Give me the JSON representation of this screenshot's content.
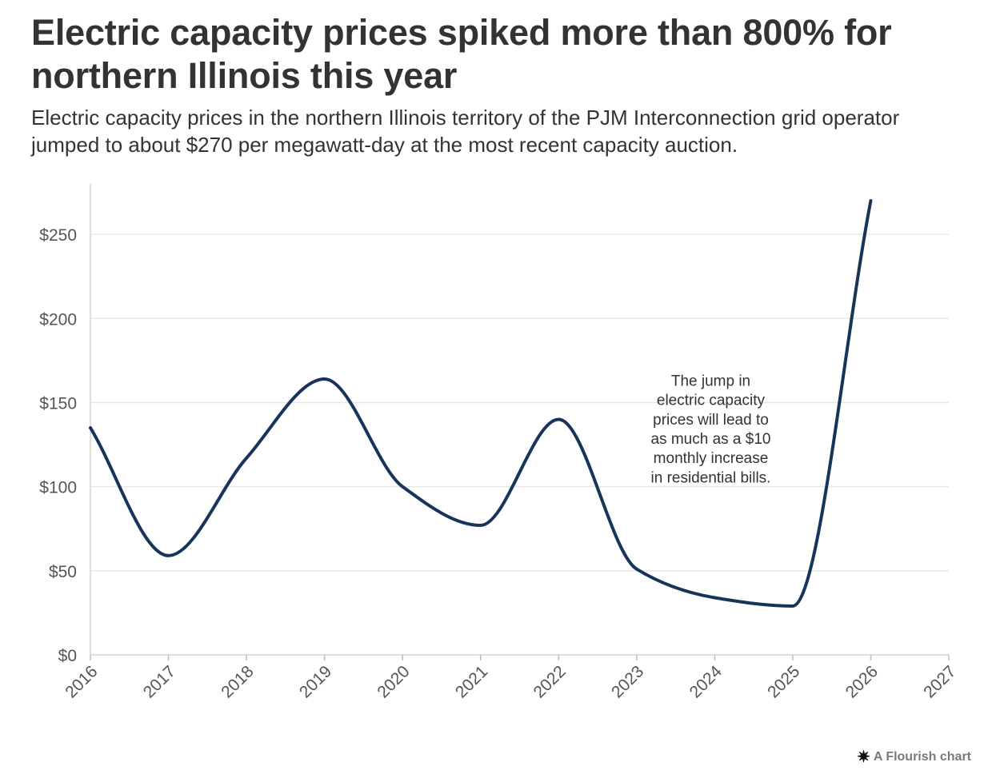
{
  "header": {
    "title": "Electric capacity prices spiked more than 800% for northern Illinois this year",
    "subtitle": "Electric capacity prices in the northern Illinois territory of the PJM Interconnection grid operator jumped to about $270 per megawatt-day at the most recent capacity auction."
  },
  "chart_data": {
    "type": "line",
    "x": [
      2016,
      2017,
      2018,
      2019,
      2020,
      2021,
      2022,
      2023,
      2024,
      2025,
      2026
    ],
    "series": [
      {
        "values": [
          135,
          59,
          117,
          164,
          100,
          77,
          140,
          51,
          34,
          29,
          270
        ],
        "color": "#17345a"
      }
    ],
    "xlim": [
      2016,
      2027
    ],
    "ylim": [
      0,
      280
    ],
    "xticks": [
      "2016",
      "2017",
      "2018",
      "2019",
      "2020",
      "2021",
      "2022",
      "2023",
      "2024",
      "2025",
      "2026",
      "2027"
    ],
    "yticks": [
      0,
      50,
      100,
      150,
      200,
      250
    ],
    "ytick_labels": [
      "$0",
      "$50",
      "$100",
      "$150",
      "$200",
      "$250"
    ],
    "grid": "horizontal",
    "annotation": {
      "lines": [
        "The jump in",
        "electric capacity",
        "prices will lead to",
        "as much as a $10",
        "monthly increase",
        "in residential bills."
      ],
      "x": 2023.95,
      "y": 160
    }
  },
  "footer": {
    "credit": "A Flourish chart",
    "icon": "flourish-star-icon"
  }
}
